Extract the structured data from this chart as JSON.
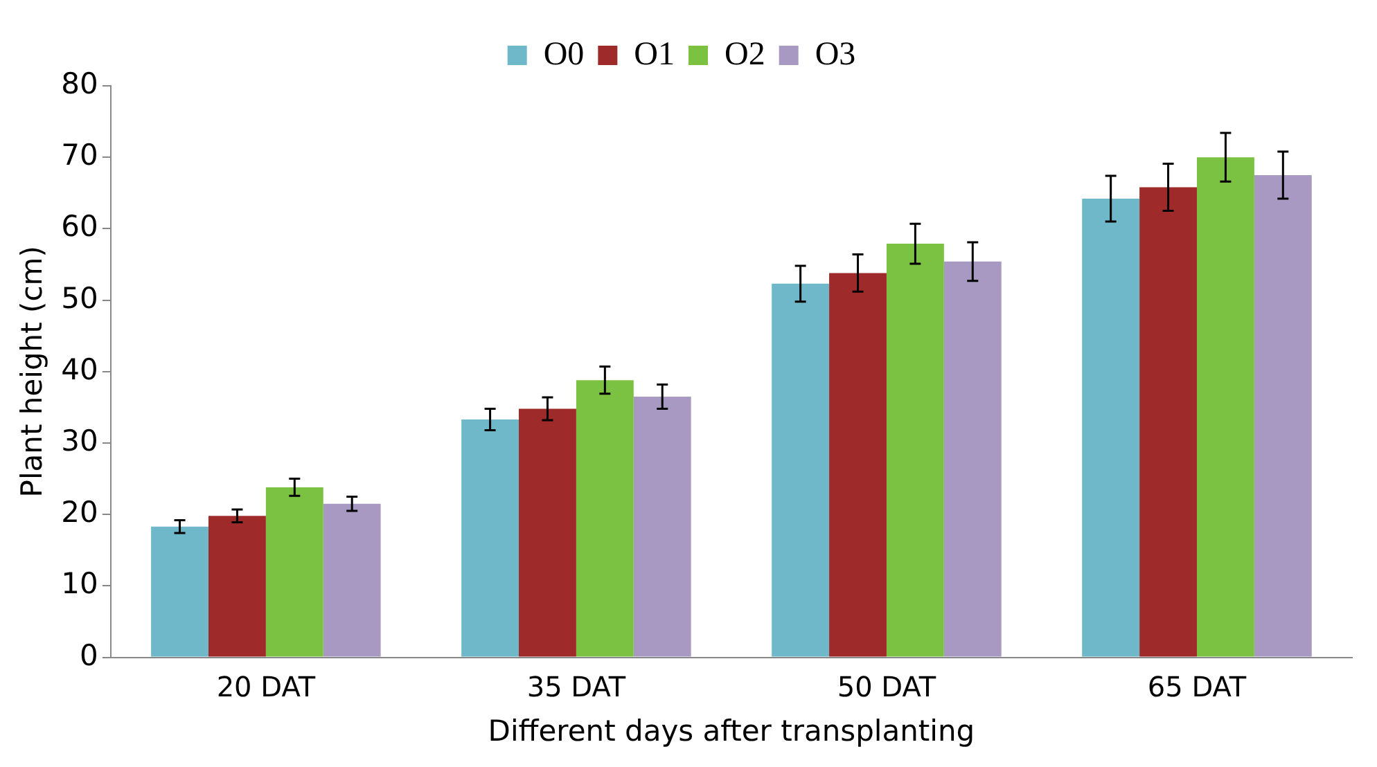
{
  "chart_data": {
    "type": "bar",
    "xlabel": "Different days after transplanting",
    "ylabel": "Plant height (cm)",
    "categories": [
      "20 DAT",
      "35 DAT",
      "50 DAT",
      "65 DAT"
    ],
    "series": [
      {
        "name": "O0",
        "color": "#6fb8c9",
        "values": [
          18.3,
          33.3,
          52.3,
          64.2
        ],
        "errors": [
          0.9,
          1.5,
          2.5,
          3.2
        ]
      },
      {
        "name": "O1",
        "color": "#9e2a2a",
        "values": [
          19.8,
          34.8,
          53.8,
          65.8
        ],
        "errors": [
          0.9,
          1.6,
          2.6,
          3.3
        ]
      },
      {
        "name": "O2",
        "color": "#7cc242",
        "values": [
          23.8,
          38.8,
          57.9,
          70
        ],
        "errors": [
          1.2,
          1.9,
          2.8,
          3.4
        ]
      },
      {
        "name": "O3",
        "color": "#a899c2",
        "values": [
          21.5,
          36.5,
          55.4,
          67.5
        ],
        "errors": [
          1,
          1.7,
          2.7,
          3.3
        ]
      }
    ],
    "ylim": [
      0,
      80
    ],
    "yticks": [
      0,
      10,
      20,
      30,
      40,
      50,
      60,
      70,
      80
    ],
    "grid": false,
    "legend": "top"
  }
}
